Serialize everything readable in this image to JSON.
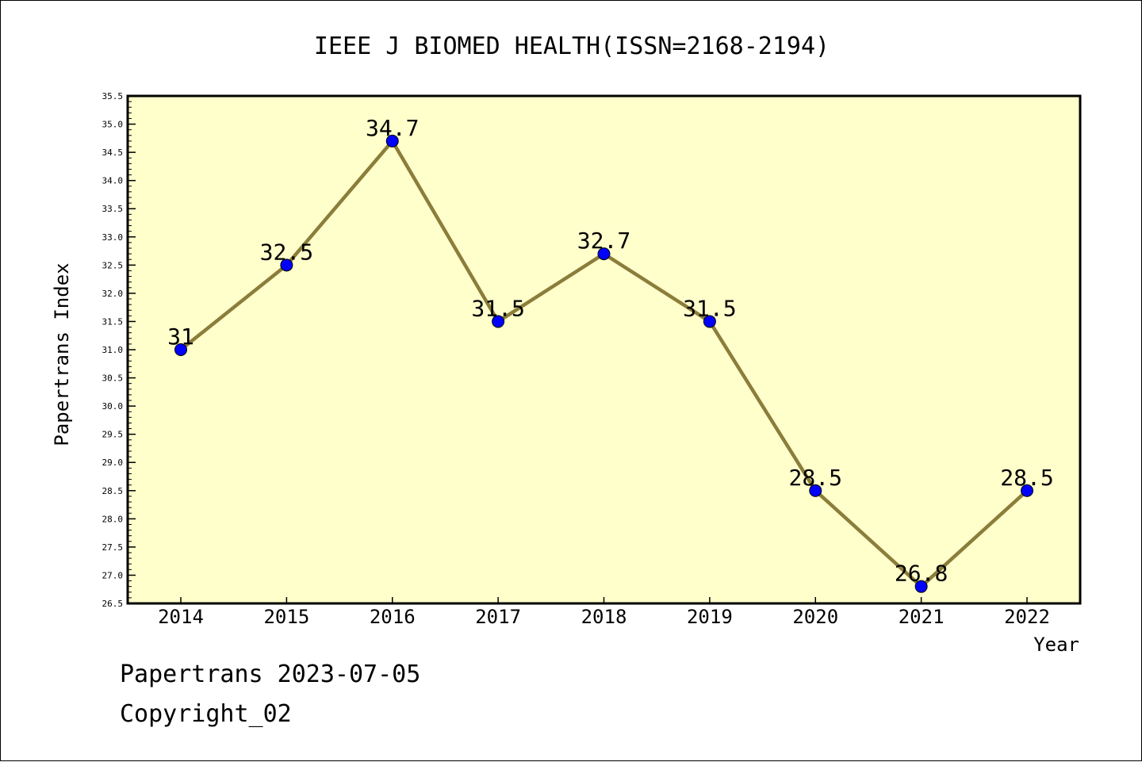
{
  "chart_data": {
    "type": "line",
    "title": "IEEE J BIOMED HEALTH(ISSN=2168-2194)",
    "xlabel": "Year",
    "ylabel": "Papertrans Index",
    "categories": [
      "2014",
      "2015",
      "2016",
      "2017",
      "2018",
      "2019",
      "2020",
      "2021",
      "2022"
    ],
    "series": [
      {
        "values": [
          31,
          32.5,
          34.7,
          31.5,
          32.7,
          31.5,
          28.5,
          26.8,
          28.5
        ],
        "data_labels": [
          "31",
          "32.5",
          "34.7",
          "31.5",
          "32.7",
          "31.5",
          "28.5",
          "26.8",
          "28.5"
        ]
      }
    ],
    "ylim": [
      26.5,
      35.5
    ],
    "yticks": [
      "26.5",
      "27.0",
      "27.5",
      "28.0",
      "28.5",
      "29.0",
      "29.5",
      "30.0",
      "30.5",
      "31.0",
      "31.5",
      "32.0",
      "32.5",
      "33.0",
      "33.5",
      "34.0",
      "34.5",
      "35.0",
      "35.5"
    ],
    "grid": false,
    "colors": {
      "plot_background": "#ffffcc",
      "line": "#8b7d3a",
      "marker": "#0000ff",
      "axis": "#000000"
    }
  },
  "footer": {
    "line1": "Papertrans 2023-07-05",
    "line2": "Copyright_02"
  }
}
